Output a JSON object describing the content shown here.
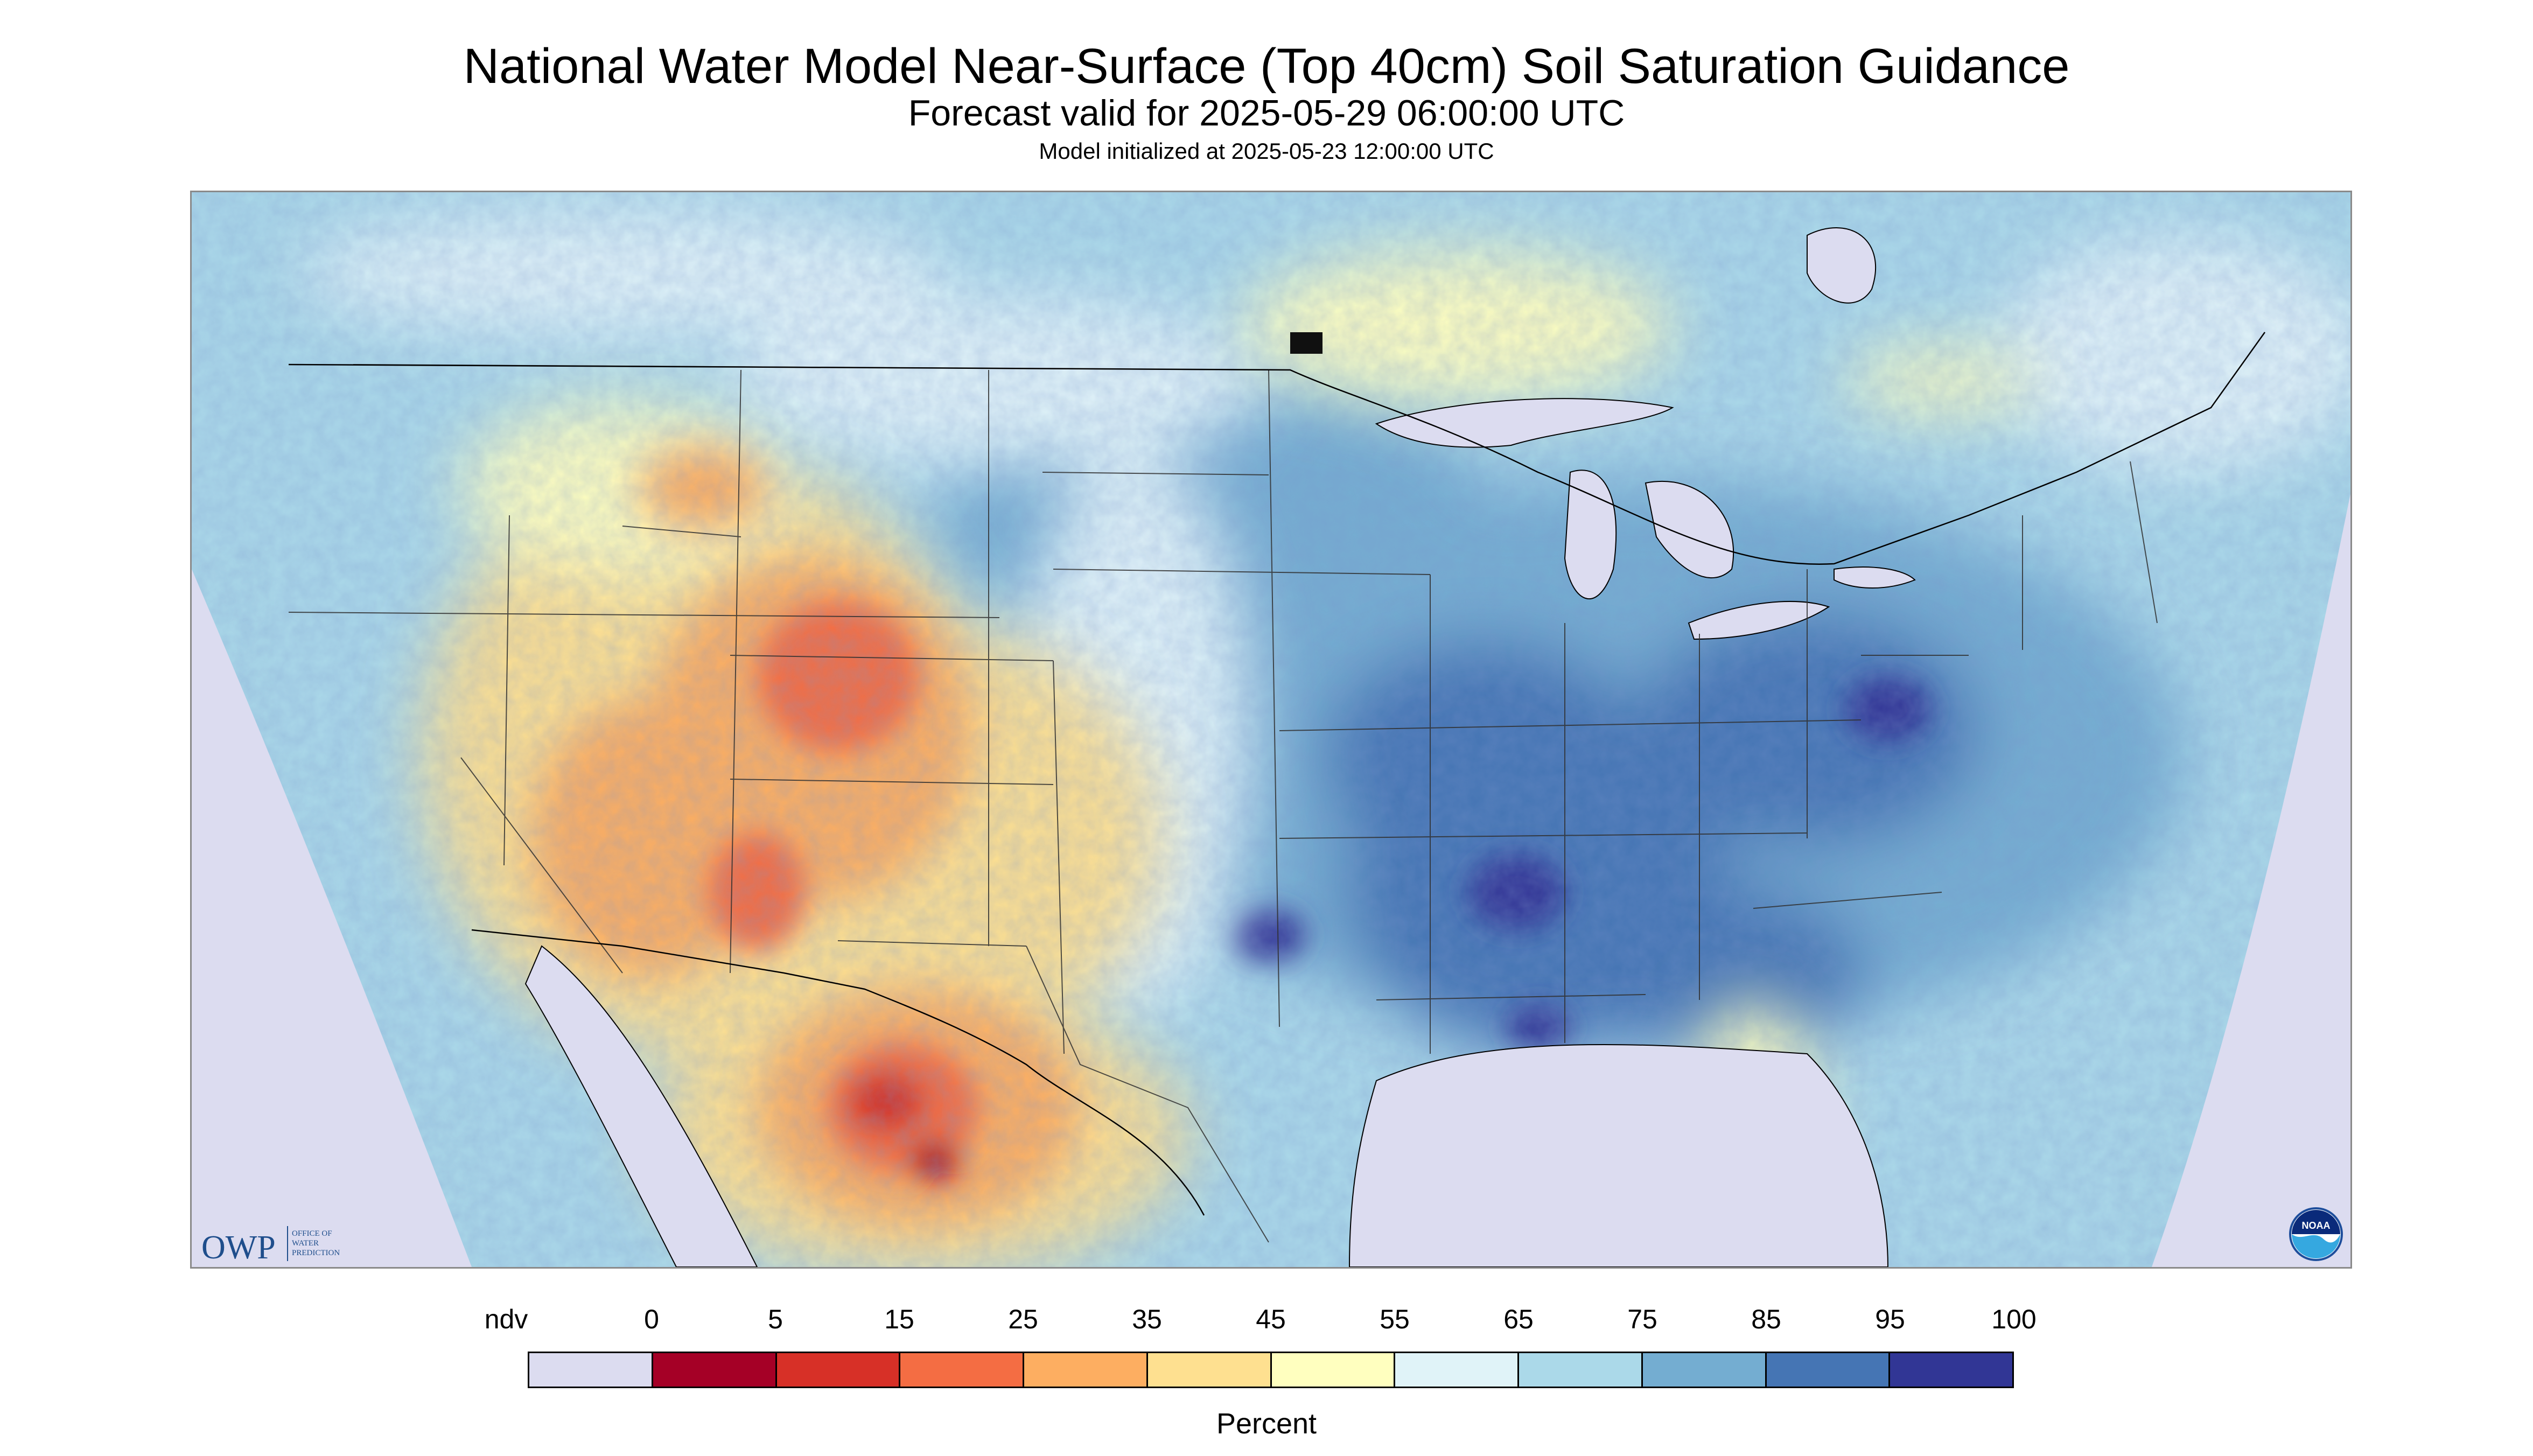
{
  "header": {
    "title": "National Water Model Near-Surface (Top 40cm) Soil Saturation Guidance",
    "forecast_valid": "Forecast valid for 2025-05-29 06:00:00 UTC",
    "initialized": "Model initialized at 2025-05-23 12:00:00 UTC"
  },
  "map": {
    "projection": "conic",
    "region": "Contiguous United States with southern Canada and northern Mexico",
    "no_data_color": "#dcdcf0",
    "water_color": "#dcdcf0",
    "logos": {
      "owp": {
        "text": "OWP",
        "subtext": [
          "OFFICE OF",
          "WATER",
          "PREDICTION"
        ],
        "color": "#1f4e8c"
      },
      "noaa": {
        "text": "NOAA",
        "icon": "noaa-logo-icon"
      }
    }
  },
  "legend": {
    "units": "Percent",
    "ndv_label": "ndv",
    "tick_labels": [
      "0",
      "5",
      "15",
      "25",
      "35",
      "45",
      "55",
      "65",
      "75",
      "85",
      "95",
      "100"
    ],
    "colors": [
      "#dcdcf0",
      "#a50026",
      "#d73027",
      "#f46d43",
      "#fdae61",
      "#fee090",
      "#ffffbf",
      "#e0f3f8",
      "#abd9e9",
      "#74add1",
      "#4575b4",
      "#313695"
    ]
  }
}
